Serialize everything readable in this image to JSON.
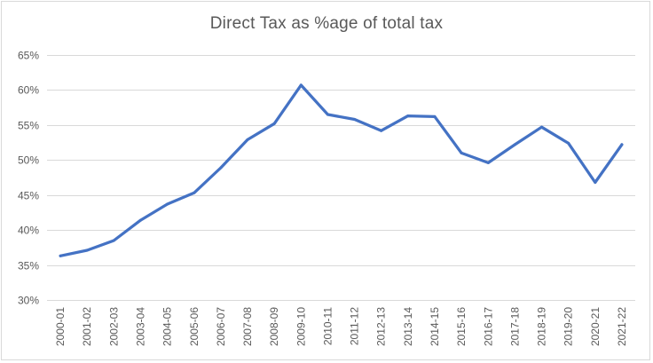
{
  "chart_data": {
    "type": "line",
    "title": "Direct Tax as %age of total tax",
    "xlabel": "",
    "ylabel": "",
    "ylim": [
      30,
      65
    ],
    "y_ticks": [
      "30%",
      "35%",
      "40%",
      "45%",
      "50%",
      "55%",
      "60%",
      "65%"
    ],
    "grid": true,
    "categories": [
      "2000-01",
      "2001-02",
      "2002-03",
      "2003-04",
      "2004-05",
      "2005-06",
      "2006-07",
      "2007-08",
      "2008-09",
      "2009-10",
      "2010-11",
      "2011-12",
      "2012-13",
      "2013-14",
      "2014-15",
      "2015-16",
      "2016-17",
      "2017-18",
      "2018-19",
      "2019-20",
      "2020-21",
      "2021-22"
    ],
    "series": [
      {
        "color": "#4472c4",
        "values": [
          36.3,
          37.1,
          38.5,
          41.4,
          43.7,
          45.3,
          48.9,
          52.9,
          55.2,
          60.7,
          56.5,
          55.8,
          54.2,
          56.3,
          56.2,
          51.0,
          49.6,
          52.2,
          54.7,
          52.4,
          46.8,
          52.2
        ]
      }
    ]
  }
}
